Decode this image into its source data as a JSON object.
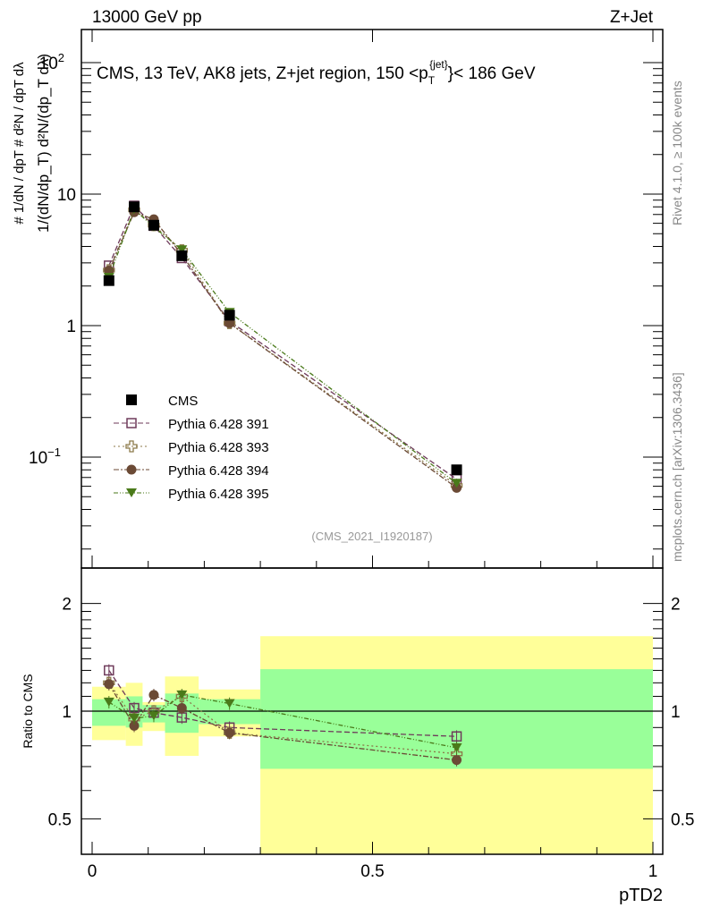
{
  "chart_data": {
    "type": "line",
    "header_left": "13000 GeV pp",
    "header_right": "Z+Jet",
    "title": "CMS, 13 TeV, AK8 jets, Z+jet region, 150 <p_T^{jet}< 186 GeV",
    "title_text": "CMS, 13 TeV, AK8 jets, Z+jet region, 150 <p",
    "title_sub": "T",
    "title_sup": "{jet}",
    "title_tail": "}< 186 GeV",
    "ylabel": "1/(dN/dp_T) d²N/(dp_T dλ)",
    "ylabel_text": "# 1/dN / dpT  #  d²N / dpT dλ",
    "xlabel": "pTD2",
    "ratio_ylabel": "Ratio to CMS",
    "analysis_id": "(CMS_2021_I1920187)",
    "side_text_top": "Rivet 4.1.0, ≥ 100k events",
    "side_text_bottom": "mcplots.cern.ch [arXiv:1306.3436]",
    "xlim": [
      0,
      1
    ],
    "ylim_main": [
      0.0145,
      176
    ],
    "ylim_ratio": [
      0.4,
      2.5
    ],
    "x_ticks": [
      {
        "v": 0,
        "label": "0"
      },
      {
        "v": 0.5,
        "label": "0.5"
      },
      {
        "v": 1,
        "label": "1"
      }
    ],
    "y_ticks_main": [
      {
        "v": 100,
        "label": "10",
        "sup": "2"
      },
      {
        "v": 10,
        "label": "10",
        "sup": ""
      },
      {
        "v": 1,
        "label": "1",
        "sup": ""
      },
      {
        "v": 0.1,
        "label": "10",
        "sup": "−1"
      }
    ],
    "y_ticks_ratio": [
      {
        "v": 2,
        "label": "2"
      },
      {
        "v": 1,
        "label": "1"
      },
      {
        "v": 0.5,
        "label": "0.5"
      }
    ],
    "bin_edges": [
      0,
      0.06,
      0.09,
      0.13,
      0.19,
      0.3,
      1.0
    ],
    "x": [
      0.03,
      0.075,
      0.11,
      0.16,
      0.245,
      0.65
    ],
    "data": {
      "name": "CMS",
      "values": [
        2.2,
        8.0,
        5.8,
        3.4,
        1.2,
        0.08
      ],
      "color": "#000000"
    },
    "band_stat": [
      [
        0.91,
        1.08
      ],
      [
        0.9,
        1.1
      ],
      [
        0.93,
        1.04
      ],
      [
        0.87,
        1.12
      ],
      [
        0.92,
        1.08
      ],
      [
        0.69,
        1.31
      ]
    ],
    "band_total": [
      [
        0.83,
        1.17
      ],
      [
        0.8,
        1.2
      ],
      [
        0.88,
        1.06
      ],
      [
        0.75,
        1.25
      ],
      [
        0.85,
        1.15
      ],
      [
        0.3,
        1.62
      ]
    ],
    "band_stat_color": "#99ff99",
    "band_total_color": "#ffff99",
    "series": [
      {
        "name": "Pythia 6.428 391",
        "marker": "open-square",
        "color": "#6e3a5a",
        "dash": "6,3",
        "ratio": [
          1.3,
          1.02,
          0.99,
          0.96,
          0.9,
          0.85
        ]
      },
      {
        "name": "Pythia 6.428 393",
        "marker": "open-cross",
        "color": "#8c7a4a",
        "dash": "2,3",
        "ratio": [
          1.2,
          0.95,
          1.0,
          1.1,
          0.87,
          0.76
        ]
      },
      {
        "name": "Pythia 6.428 394",
        "marker": "circle",
        "color": "#6b4a35",
        "dash": "6,2,2,2",
        "ratio": [
          1.19,
          0.91,
          1.11,
          1.02,
          0.87,
          0.73
        ]
      },
      {
        "name": "Pythia 6.428 395",
        "marker": "triangle-down",
        "color": "#4a7a1a",
        "dash": "5,2,1,2,1,2",
        "ratio": [
          1.06,
          0.955,
          0.97,
          1.11,
          1.05,
          0.79
        ]
      }
    ]
  }
}
